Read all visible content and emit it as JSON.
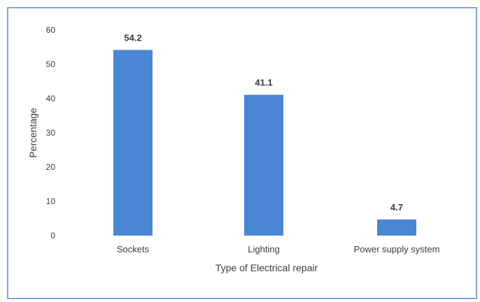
{
  "chart_data": {
    "type": "bar",
    "title": "",
    "xlabel": "Type of Electrical repair",
    "ylabel": "Percentage",
    "categories": [
      "Sockets",
      "Lighting",
      "Power supply system"
    ],
    "values": [
      54.2,
      41.1,
      4.7
    ],
    "data_labels": [
      "54.2",
      "41.1",
      "4.7"
    ],
    "ylim": [
      0,
      60
    ],
    "yticks": [
      "0",
      "10",
      "20",
      "30",
      "40",
      "50",
      "60"
    ],
    "grid": false,
    "legend": "none",
    "bar_color": "#4a86d4"
  }
}
